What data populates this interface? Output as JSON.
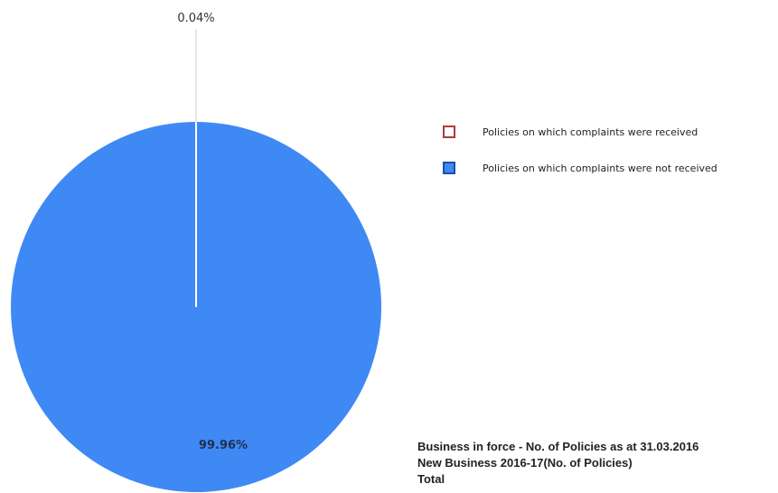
{
  "chart_data": {
    "type": "pie",
    "slices": [
      {
        "label": "Policies on which complaints were received",
        "value": 0.04,
        "display": "0.04%",
        "color": "#ffffff",
        "border": "#b03a3a"
      },
      {
        "label": "Policies on which complaints were not received",
        "value": 99.96,
        "display": "99.96%",
        "color": "#3f89f5",
        "border": "#1d4fa8"
      }
    ],
    "legend_position": "right",
    "legend": [
      "Policies on which complaints were received",
      "Policies on which complaints were not received"
    ]
  },
  "footer": {
    "lines": [
      "Business in force - No. of Policies as at 31.03.2016",
      "New Business 2016-17(No. of Policies)",
      "Total"
    ]
  }
}
